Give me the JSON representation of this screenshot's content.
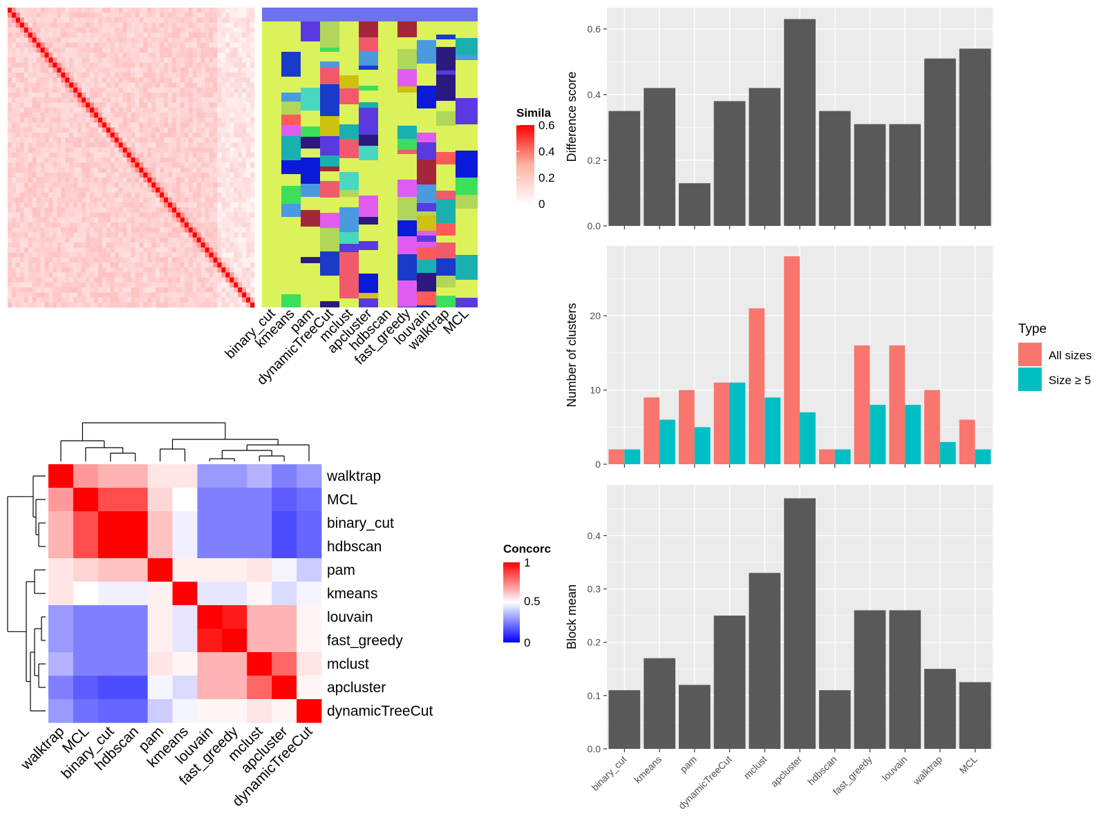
{
  "colors": {
    "panel_bg": "#ebebeb",
    "grid": "#ffffff",
    "bar": "#595959",
    "all_sizes": "#f8766d",
    "size5": "#00bfc4",
    "method_bar": "#6e72f0",
    "cluster_bg": "#dcf25a",
    "sim_high": "#ff0000",
    "conc_low": "#0000ff"
  },
  "methods": [
    "binary_cut",
    "kmeans",
    "pam",
    "dynamicTreeCut",
    "mclust",
    "apcluster",
    "hdbscan",
    "fast_greedy",
    "louvain",
    "walktrap",
    "MCL"
  ],
  "similarity_heatmap": {
    "legend_title": "Simila",
    "legend_ticks": [
      "0.6",
      "0.4",
      "0.2",
      "0"
    ]
  },
  "concordance_heatmap": {
    "legend_title": "Concorc",
    "legend_ticks": [
      "1",
      "0.5",
      "0"
    ],
    "order": [
      "walktrap",
      "MCL",
      "binary_cut",
      "hdbscan",
      "pam",
      "kmeans",
      "louvain",
      "fast_greedy",
      "mclust",
      "apcluster",
      "dynamicTreeCut"
    ],
    "matrix": [
      [
        1.0,
        0.7,
        0.65,
        0.65,
        0.55,
        0.55,
        0.3,
        0.3,
        0.35,
        0.25,
        0.3
      ],
      [
        0.7,
        1.0,
        0.85,
        0.85,
        0.58,
        0.5,
        0.25,
        0.25,
        0.25,
        0.18,
        0.22
      ],
      [
        0.65,
        0.85,
        1.0,
        1.0,
        0.62,
        0.47,
        0.25,
        0.25,
        0.25,
        0.15,
        0.2
      ],
      [
        0.65,
        0.85,
        1.0,
        1.0,
        0.62,
        0.47,
        0.25,
        0.25,
        0.25,
        0.15,
        0.2
      ],
      [
        0.55,
        0.58,
        0.62,
        0.62,
        1.0,
        0.53,
        0.53,
        0.53,
        0.55,
        0.48,
        0.4
      ],
      [
        0.55,
        0.5,
        0.47,
        0.47,
        0.53,
        1.0,
        0.45,
        0.45,
        0.52,
        0.43,
        0.48
      ],
      [
        0.3,
        0.25,
        0.25,
        0.25,
        0.53,
        0.45,
        1.0,
        0.95,
        0.65,
        0.65,
        0.52
      ],
      [
        0.3,
        0.25,
        0.25,
        0.25,
        0.53,
        0.45,
        0.95,
        1.0,
        0.65,
        0.65,
        0.52
      ],
      [
        0.35,
        0.25,
        0.25,
        0.25,
        0.55,
        0.52,
        0.65,
        0.65,
        1.0,
        0.8,
        0.55
      ],
      [
        0.25,
        0.18,
        0.15,
        0.15,
        0.48,
        0.43,
        0.65,
        0.65,
        0.8,
        1.0,
        0.52
      ],
      [
        0.3,
        0.22,
        0.2,
        0.2,
        0.4,
        0.48,
        0.52,
        0.52,
        0.55,
        0.52,
        1.0
      ]
    ]
  },
  "chart_data": [
    {
      "type": "bar",
      "categories": [
        "binary_cut",
        "kmeans",
        "pam",
        "dynamicTreeCut",
        "mclust",
        "apcluster",
        "hdbscan",
        "fast_greedy",
        "louvain",
        "walktrap",
        "MCL"
      ],
      "values": [
        0.35,
        0.42,
        0.13,
        0.38,
        0.42,
        0.63,
        0.35,
        0.31,
        0.31,
        0.51,
        0.54
      ],
      "ylabel": "Difference score",
      "ylim": [
        0,
        0.665
      ],
      "yticks": [
        "0.0",
        "0.2",
        "0.4",
        "0.6"
      ],
      "grid": true
    },
    {
      "type": "bar",
      "categories": [
        "binary_cut",
        "kmeans",
        "pam",
        "dynamicTreeCut",
        "mclust",
        "apcluster",
        "hdbscan",
        "fast_greedy",
        "louvain",
        "walktrap",
        "MCL"
      ],
      "series": [
        {
          "name": "All sizes",
          "values": [
            2,
            9,
            10,
            11,
            21,
            28,
            2,
            16,
            16,
            10,
            6
          ]
        },
        {
          "name": "Size ≥ 5",
          "values": [
            2,
            6,
            5,
            11,
            9,
            7,
            2,
            8,
            8,
            3,
            2
          ]
        }
      ],
      "ylabel": "Number of clusters",
      "ylim": [
        0,
        29.4
      ],
      "yticks": [
        "0",
        "10",
        "20"
      ],
      "legend_title": "Type",
      "legend_position": "right",
      "grid": true
    },
    {
      "type": "bar",
      "categories": [
        "binary_cut",
        "kmeans",
        "pam",
        "dynamicTreeCut",
        "mclust",
        "apcluster",
        "hdbscan",
        "fast_greedy",
        "louvain",
        "walktrap",
        "MCL"
      ],
      "values": [
        0.11,
        0.17,
        0.12,
        0.25,
        0.33,
        0.47,
        0.11,
        0.26,
        0.26,
        0.15,
        0.125
      ],
      "ylabel": "Block mean",
      "ylim": [
        0,
        0.495
      ],
      "yticks": [
        "0.0",
        "0.1",
        "0.2",
        "0.3",
        "0.4"
      ],
      "grid": true
    }
  ]
}
